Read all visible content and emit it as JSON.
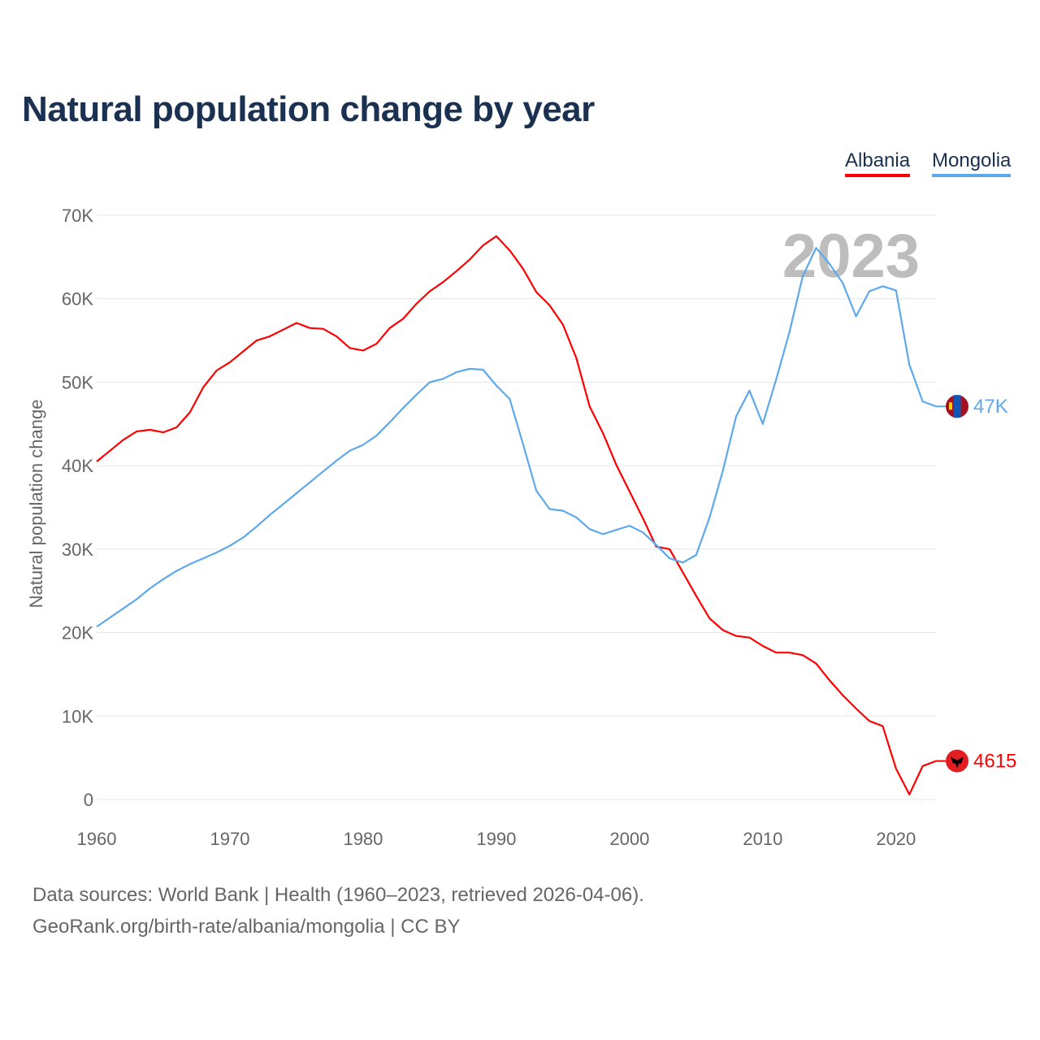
{
  "chart_data": {
    "type": "line",
    "title": "Natural population change by year",
    "xlabel": "",
    "ylabel": "Natural population change",
    "xlim": [
      1960,
      2023
    ],
    "ylim": [
      0,
      70000
    ],
    "y_ticks": [
      0,
      10000,
      20000,
      30000,
      40000,
      50000,
      60000,
      70000
    ],
    "y_tick_labels": [
      "0",
      "10K",
      "20K",
      "30K",
      "40K",
      "50K",
      "60K",
      "70K"
    ],
    "x_ticks": [
      1960,
      1970,
      1980,
      1990,
      2000,
      2010,
      2020
    ],
    "x_tick_labels": [
      "1960",
      "1970",
      "1980",
      "1990",
      "2000",
      "2010",
      "2020"
    ],
    "grid": true,
    "legend_position": "top-right",
    "year_watermark": "2023",
    "x_start": 1960,
    "series": [
      {
        "name": "Albania",
        "color": "#ff0000",
        "end_label": "4615",
        "flag": "albania-flag",
        "values": [
          40500,
          41800,
          43100,
          44100,
          44300,
          44000,
          44600,
          46400,
          49400,
          51400,
          52400,
          53700,
          55000,
          55500,
          56300,
          57100,
          56500,
          56400,
          55500,
          54100,
          53800,
          54600,
          56500,
          57600,
          59400,
          60900,
          62000,
          63300,
          64700,
          66400,
          67500,
          65800,
          63600,
          60800,
          59200,
          56900,
          52900,
          47100,
          43900,
          40100,
          36900,
          33700,
          30300,
          30000,
          27200,
          24400,
          21700,
          20300,
          19600,
          19400,
          18400,
          17600,
          17600,
          17300,
          16300,
          14300,
          12500,
          10900,
          9400,
          8800,
          3700,
          600,
          4000,
          4615
        ]
      },
      {
        "name": "Mongolia",
        "color": "#5ea8ec",
        "end_label": "47K",
        "flag": "mongolia-flag",
        "values": [
          20700,
          21800,
          22900,
          24000,
          25300,
          26400,
          27400,
          28200,
          28900,
          29600,
          30400,
          31400,
          32700,
          34100,
          35400,
          36700,
          38000,
          39300,
          40600,
          41800,
          42500,
          43600,
          45200,
          46900,
          48500,
          50000,
          50400,
          51200,
          51600,
          51500,
          49600,
          48000,
          42600,
          37000,
          34800,
          34600,
          33800,
          32400,
          31800,
          32300,
          32800,
          32000,
          30500,
          28900,
          28400,
          29300,
          33800,
          39400,
          45900,
          49000,
          45000,
          50300,
          56000,
          62700,
          66100,
          64200,
          61900,
          57900,
          60900,
          61500,
          61000,
          52100,
          47700,
          47100
        ]
      }
    ]
  },
  "footer": {
    "line1": "Data sources: World Bank | Health (1960–2023, retrieved 2026-04-06).",
    "line2": "GeoRank.org/birth-rate/albania/mongolia | CC BY"
  }
}
